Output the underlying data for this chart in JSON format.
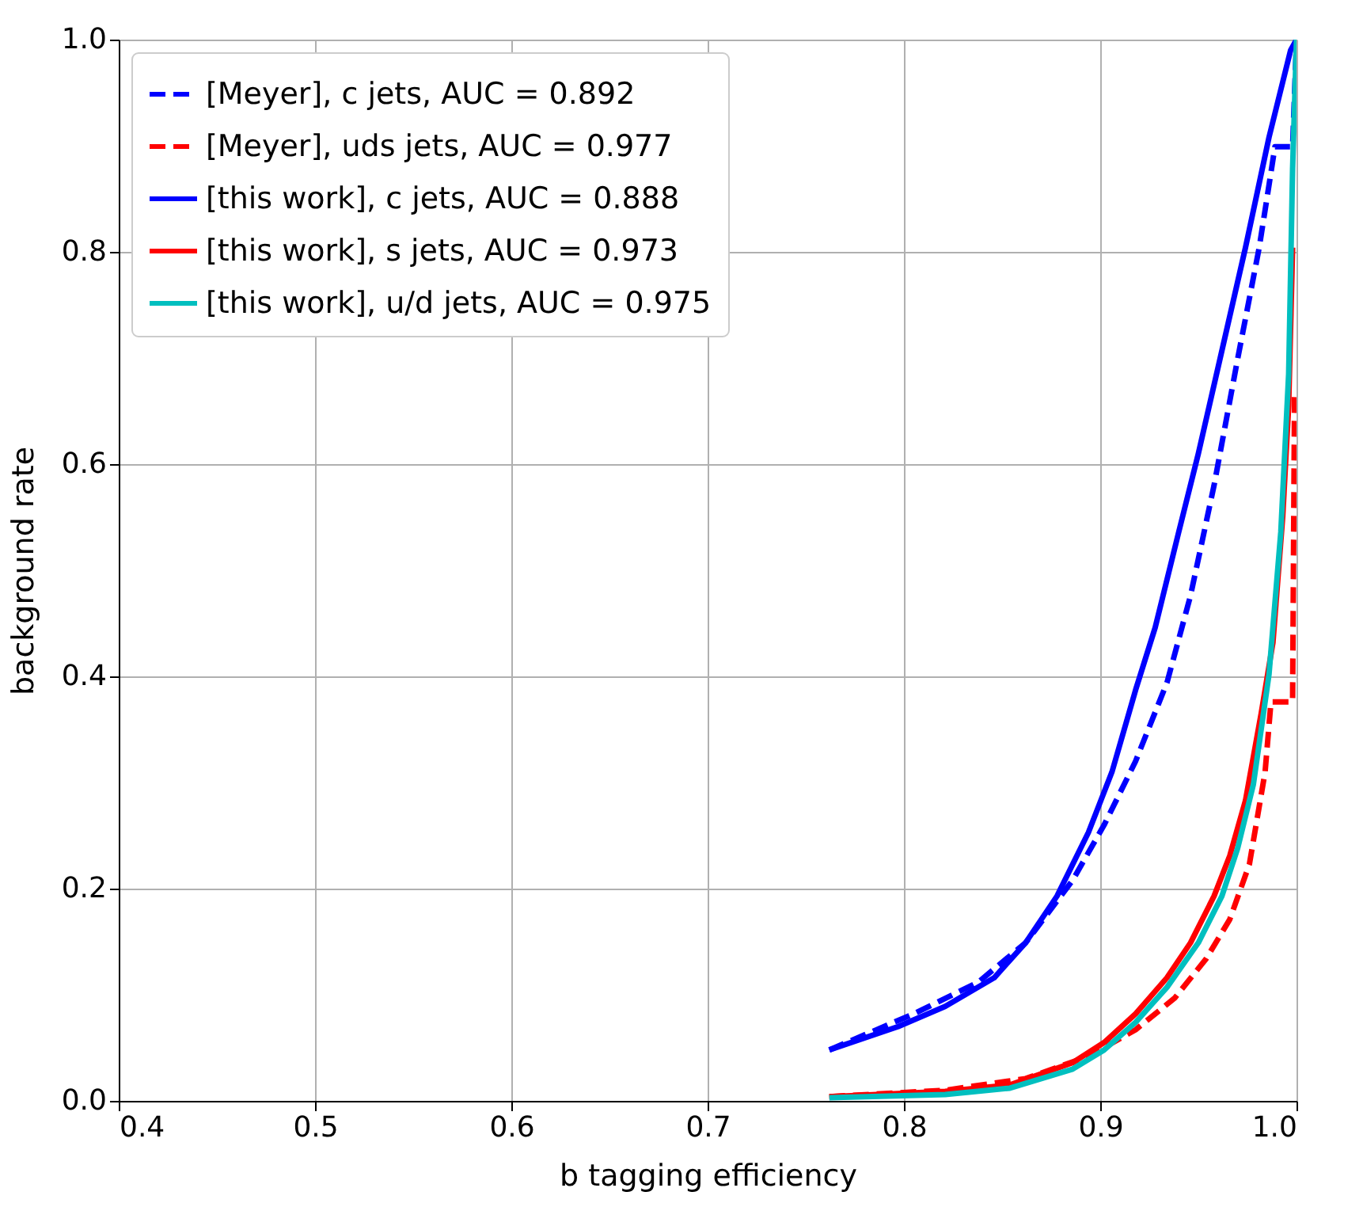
{
  "chart_data": {
    "type": "line",
    "xlabel": "b tagging efficiency",
    "ylabel": "background rate",
    "xlim": [
      0.4,
      1.0
    ],
    "ylim": [
      0.0,
      1.0
    ],
    "xticks": [
      {
        "value": 0.4,
        "label": "0.4"
      },
      {
        "value": 0.5,
        "label": "0.5"
      },
      {
        "value": 0.6,
        "label": "0.6"
      },
      {
        "value": 0.7,
        "label": "0.7"
      },
      {
        "value": 0.8,
        "label": "0.8"
      },
      {
        "value": 0.9,
        "label": "0.9"
      },
      {
        "value": 1.0,
        "label": "1.0"
      }
    ],
    "yticks": [
      {
        "value": 0.0,
        "label": "0.0"
      },
      {
        "value": 0.2,
        "label": "0.2"
      },
      {
        "value": 0.4,
        "label": "0.4"
      },
      {
        "value": 0.6,
        "label": "0.6"
      },
      {
        "value": 0.8,
        "label": "0.8"
      },
      {
        "value": 1.0,
        "label": "1.0"
      }
    ],
    "grid": true,
    "legend": "top left",
    "marker": "none",
    "series": [
      {
        "name": "[Meyer], c jets, AUC = 0.892",
        "color": "#0000ff",
        "line_style": "dashed",
        "x": [
          0.762,
          0.805,
          0.838,
          0.862,
          0.886,
          0.902,
          0.918,
          0.934,
          0.946,
          0.958,
          0.97,
          0.981,
          0.986,
          0.989,
          0.998,
          1.0
        ],
        "values": [
          0.048,
          0.082,
          0.112,
          0.149,
          0.208,
          0.26,
          0.32,
          0.394,
          0.476,
          0.58,
          0.699,
          0.804,
          0.863,
          0.899,
          0.899,
          1.0
        ]
      },
      {
        "name": "[Meyer], uds jets, AUC = 0.977",
        "color": "#ff0000",
        "line_style": "dashed",
        "x": [
          0.762,
          0.821,
          0.862,
          0.894,
          0.918,
          0.938,
          0.954,
          0.966,
          0.976,
          0.984,
          0.987,
          0.998,
          0.999
        ],
        "values": [
          0.004,
          0.01,
          0.021,
          0.042,
          0.067,
          0.097,
          0.134,
          0.171,
          0.223,
          0.31,
          0.376,
          0.376,
          0.665
        ]
      },
      {
        "name": "[this work], c jets, AUC = 0.888",
        "color": "#0000ff",
        "line_style": "solid",
        "x": [
          0.762,
          0.797,
          0.821,
          0.846,
          0.862,
          0.878,
          0.894,
          0.906,
          0.918,
          0.928,
          0.94,
          0.95,
          0.962,
          0.974,
          0.986,
          0.997,
          1.0
        ],
        "values": [
          0.048,
          0.07,
          0.089,
          0.116,
          0.149,
          0.193,
          0.253,
          0.31,
          0.387,
          0.446,
          0.536,
          0.61,
          0.707,
          0.804,
          0.908,
          0.99,
          1.0
        ]
      },
      {
        "name": "[this work], s jets, AUC = 0.973",
        "color": "#ff0000",
        "line_style": "solid",
        "x": [
          0.762,
          0.821,
          0.854,
          0.886,
          0.902,
          0.918,
          0.934,
          0.946,
          0.958,
          0.966,
          0.974,
          0.982,
          0.988,
          0.993,
          0.996,
          0.998
        ],
        "values": [
          0.004,
          0.009,
          0.015,
          0.036,
          0.055,
          0.082,
          0.116,
          0.149,
          0.193,
          0.231,
          0.283,
          0.365,
          0.432,
          0.551,
          0.655,
          0.804
        ]
      },
      {
        "name": "[this work], u/d jets, AUC = 0.975",
        "color": "#00bfbf",
        "line_style": "solid",
        "x": [
          0.762,
          0.821,
          0.854,
          0.886,
          0.902,
          0.918,
          0.934,
          0.95,
          0.962,
          0.97,
          0.978,
          0.986,
          0.992,
          0.996,
          0.998,
          1.0
        ],
        "values": [
          0.003,
          0.006,
          0.012,
          0.03,
          0.048,
          0.074,
          0.107,
          0.149,
          0.193,
          0.238,
          0.298,
          0.402,
          0.536,
          0.685,
          0.878,
          1.0
        ]
      }
    ]
  }
}
